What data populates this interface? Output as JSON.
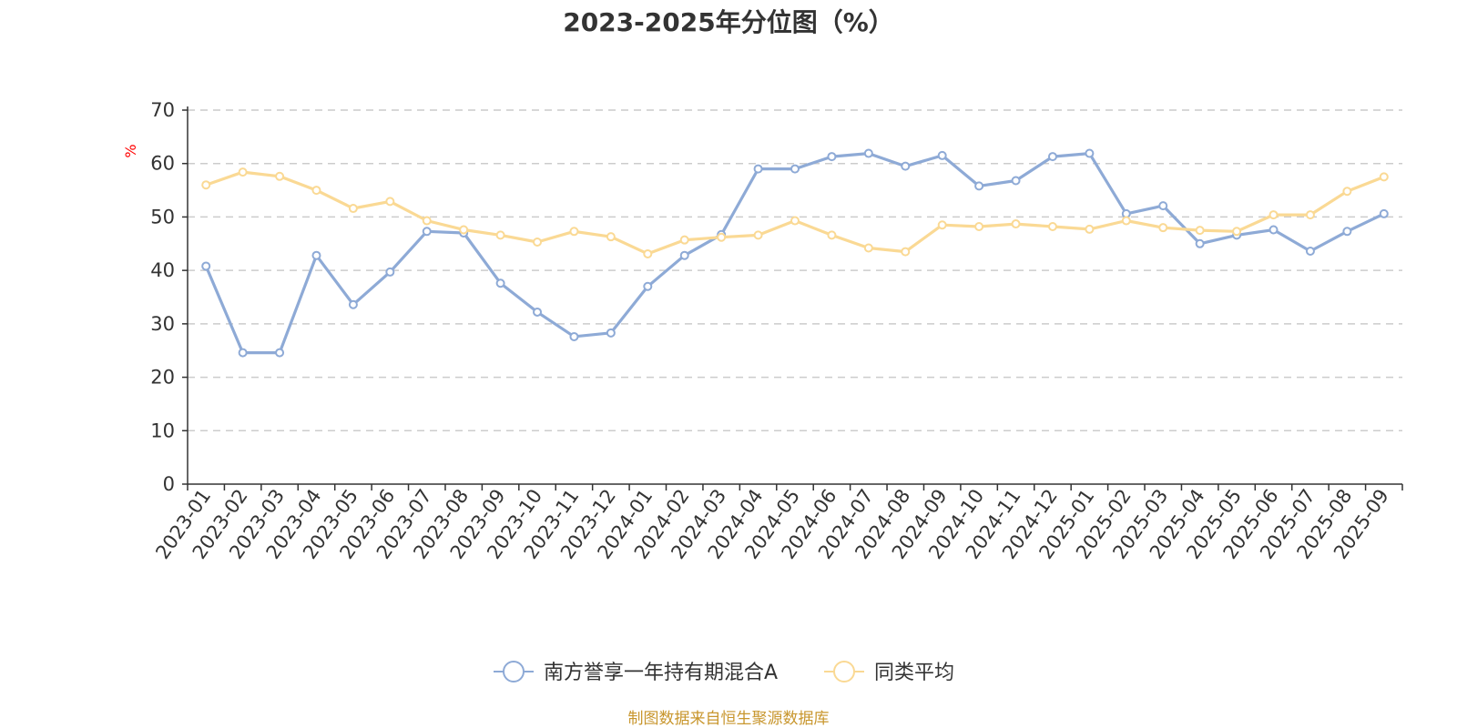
{
  "chart_data": {
    "type": "line",
    "title": "2023-2025年分位图（%）",
    "ylabel": "%",
    "ylim": [
      0,
      70
    ],
    "yticks": [
      0,
      10,
      20,
      30,
      40,
      50,
      60,
      70
    ],
    "grid": "horizontal-dashed",
    "legend_position": "bottom-center",
    "categories": [
      "2023-01",
      "2023-02",
      "2023-03",
      "2023-04",
      "2023-05",
      "2023-06",
      "2023-07",
      "2023-08",
      "2023-09",
      "2023-10",
      "2023-11",
      "2023-12",
      "2024-01",
      "2024-02",
      "2024-03",
      "2024-04",
      "2024-05",
      "2024-06",
      "2024-07",
      "2024-08",
      "2024-09",
      "2024-10",
      "2024-11",
      "2024-12",
      "2025-01",
      "2025-02",
      "2025-03",
      "2025-04",
      "2025-05",
      "2025-06",
      "2025-07",
      "2025-08",
      "2025-09"
    ],
    "series": [
      {
        "name": "南方誉享一年持有期混合A",
        "color": "#8eaad6",
        "values": [
          40.8,
          24.6,
          24.6,
          42.8,
          33.6,
          39.7,
          47.3,
          47.0,
          37.6,
          32.2,
          27.6,
          28.3,
          37.0,
          42.8,
          46.7,
          59.0,
          59.0,
          61.3,
          61.9,
          59.5,
          61.5,
          55.8,
          56.8,
          61.3,
          61.9,
          50.6,
          52.1,
          45.0,
          46.6,
          47.6,
          43.6,
          47.3,
          50.6
        ]
      },
      {
        "name": "同类平均",
        "color": "#fad994",
        "values": [
          56.0,
          58.4,
          57.6,
          55.0,
          51.6,
          52.9,
          49.3,
          47.6,
          46.6,
          45.3,
          47.3,
          46.3,
          43.1,
          45.7,
          46.2,
          46.6,
          49.3,
          46.6,
          44.2,
          43.5,
          48.5,
          48.2,
          48.7,
          48.2,
          47.7,
          49.3,
          48.0,
          47.5,
          47.3,
          50.4,
          50.4,
          54.8,
          57.5
        ]
      }
    ]
  },
  "footer": {
    "source": "制图数据来自恒生聚源数据库"
  }
}
